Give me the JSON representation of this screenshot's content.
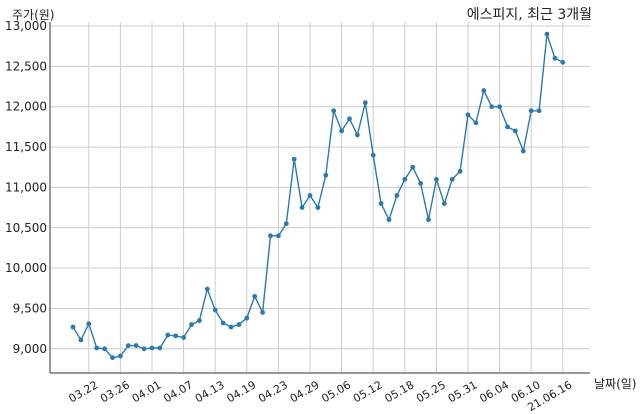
{
  "chart_data": {
    "type": "line",
    "title": "에스피지, 최근 3개월",
    "ylabel": "주가(원)",
    "xlabel": "날짜(일)",
    "ylim": [
      8700,
      13050
    ],
    "y_ticks": [
      9000,
      9500,
      10000,
      10500,
      11000,
      11500,
      12000,
      12500,
      13000
    ],
    "y_tick_labels": [
      "9,000",
      "9,500",
      "10,000",
      "10,500",
      "11,000",
      "11,500",
      "12,000",
      "12,500",
      "13,000"
    ],
    "x_ticks": [
      {
        "index": 2,
        "label": "03.22"
      },
      {
        "index": 6,
        "label": "03.26"
      },
      {
        "index": 10,
        "label": "04.01"
      },
      {
        "index": 14,
        "label": "04.07"
      },
      {
        "index": 18,
        "label": "04.13"
      },
      {
        "index": 22,
        "label": "04.19"
      },
      {
        "index": 26,
        "label": "04.23"
      },
      {
        "index": 30,
        "label": "04.29"
      },
      {
        "index": 34,
        "label": "05.06"
      },
      {
        "index": 38,
        "label": "05.12"
      },
      {
        "index": 42,
        "label": "05.18"
      },
      {
        "index": 46,
        "label": "05.25"
      },
      {
        "index": 50,
        "label": "05.31"
      },
      {
        "index": 54,
        "label": "06.04"
      },
      {
        "index": 58,
        "label": "06.10"
      },
      {
        "index": 62,
        "label": "21.06.16"
      }
    ],
    "grid": true,
    "series": [
      {
        "color": "#2a7ab0",
        "values": [
          9270,
          9110,
          9310,
          9010,
          9000,
          8890,
          8910,
          9040,
          9040,
          9000,
          9010,
          9010,
          9170,
          9160,
          9140,
          9300,
          9350,
          9740,
          9480,
          9320,
          9270,
          9300,
          9380,
          9650,
          9450,
          10400,
          10400,
          10550,
          11350,
          10750,
          10900,
          10750,
          11150,
          11950,
          11700,
          11850,
          11650,
          12050,
          11400,
          10800,
          10600,
          10900,
          11100,
          11250,
          11050,
          10600,
          11100,
          10800,
          11100,
          11200,
          11900,
          11800,
          12200,
          12000,
          12000,
          11750,
          11700,
          11450,
          11950,
          11950,
          12900,
          12600,
          12550
        ]
      }
    ]
  }
}
